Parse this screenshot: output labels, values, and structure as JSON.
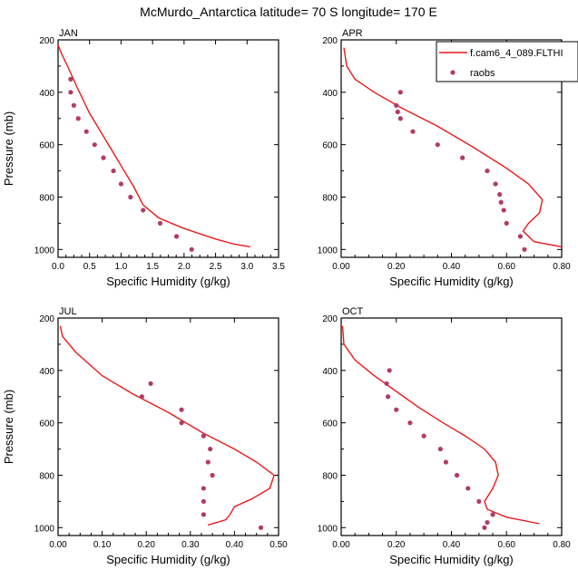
{
  "title": "McMurdo_Antarctica  latitude= 70 S longitude= 170 E",
  "colors": {
    "model": "#e8191c",
    "raobs": "#b23b66",
    "axis": "#000000"
  },
  "legend": {
    "model_label": "f.cam6_4_089.FLTHI",
    "obs_label": "raobs",
    "placement": "top-right of APR panel"
  },
  "chart_data": [
    {
      "type": "line",
      "panel": "JAN",
      "xlabel": "Specific Humidity (g/kg)",
      "ylabel": "Pressure (mb)",
      "xlim": [
        0,
        3.5
      ],
      "ylim": [
        200,
        1030
      ],
      "y_inverted": true,
      "xticks": [
        "0.0",
        "0.5",
        "1.0",
        "1.5",
        "2.0",
        "2.5",
        "3.0",
        "3.5"
      ],
      "yticks": [
        "200",
        "400",
        "600",
        "800",
        "1000"
      ],
      "series": [
        {
          "kind": "line",
          "x": [
            0.0,
            0.05,
            0.15,
            0.3,
            0.5,
            0.75,
            1.0,
            1.2,
            1.35,
            1.6,
            2.0,
            2.5,
            2.8,
            3.05
          ],
          "y": [
            220,
            250,
            300,
            380,
            480,
            580,
            680,
            760,
            830,
            880,
            920,
            960,
            980,
            990
          ]
        },
        {
          "kind": "scatter",
          "x": [
            0.2,
            0.2,
            0.25,
            0.32,
            0.45,
            0.58,
            0.72,
            0.88,
            1.0,
            1.15,
            1.35,
            1.62,
            1.88,
            2.12
          ],
          "y": [
            350,
            400,
            450,
            500,
            550,
            600,
            650,
            700,
            750,
            800,
            850,
            900,
            950,
            1000
          ]
        }
      ]
    },
    {
      "type": "line",
      "panel": "APR",
      "xlabel": "Specific Humidity (g/kg)",
      "ylabel": "",
      "xlim": [
        0,
        0.8
      ],
      "ylim": [
        200,
        1030
      ],
      "y_inverted": true,
      "xticks": [
        "0.00",
        "0.20",
        "0.40",
        "0.60",
        "0.80"
      ],
      "yticks": [
        "200",
        "400",
        "600",
        "800",
        "1000"
      ],
      "series": [
        {
          "kind": "line",
          "x": [
            0.01,
            0.02,
            0.05,
            0.12,
            0.22,
            0.35,
            0.48,
            0.6,
            0.68,
            0.73,
            0.72,
            0.68,
            0.66,
            0.7,
            0.8
          ],
          "y": [
            230,
            300,
            350,
            400,
            460,
            530,
            610,
            690,
            750,
            810,
            860,
            900,
            930,
            970,
            990
          ]
        },
        {
          "kind": "scatter",
          "x": [
            0.215,
            0.2,
            0.205,
            0.215,
            0.26,
            0.35,
            0.44,
            0.53,
            0.56,
            0.575,
            0.58,
            0.59,
            0.6,
            0.65,
            0.665
          ],
          "y": [
            400,
            450,
            475,
            500,
            550,
            600,
            650,
            700,
            750,
            790,
            820,
            850,
            900,
            950,
            1000
          ]
        }
      ]
    },
    {
      "type": "line",
      "panel": "JUL",
      "xlabel": "Specific Humidity (g/kg)",
      "ylabel": "Pressure (mb)",
      "xlim": [
        0,
        0.5
      ],
      "ylim": [
        200,
        1030
      ],
      "y_inverted": true,
      "xticks": [
        "0.00",
        "0.10",
        "0.20",
        "0.30",
        "0.40",
        "0.50"
      ],
      "yticks": [
        "200",
        "400",
        "600",
        "800",
        "1000"
      ],
      "series": [
        {
          "kind": "line",
          "x": [
            0.005,
            0.01,
            0.04,
            0.1,
            0.17,
            0.25,
            0.33,
            0.4,
            0.45,
            0.49,
            0.48,
            0.44,
            0.4,
            0.39,
            0.38,
            0.34
          ],
          "y": [
            230,
            270,
            330,
            420,
            490,
            560,
            640,
            700,
            750,
            800,
            850,
            890,
            920,
            950,
            970,
            990
          ]
        },
        {
          "kind": "scatter",
          "x": [
            0.21,
            0.19,
            0.28,
            0.28,
            0.33,
            0.345,
            0.34,
            0.35,
            0.33,
            0.33,
            0.33,
            0.46
          ],
          "y": [
            450,
            500,
            550,
            600,
            650,
            700,
            750,
            800,
            850,
            900,
            950,
            1000
          ]
        }
      ]
    },
    {
      "type": "line",
      "panel": "OCT",
      "xlabel": "Specific Humidity (g/kg)",
      "ylabel": "",
      "xlim": [
        0,
        0.8
      ],
      "ylim": [
        200,
        1030
      ],
      "y_inverted": true,
      "xticks": [
        "0.00",
        "0.20",
        "0.40",
        "0.60",
        "0.80"
      ],
      "yticks": [
        "200",
        "400",
        "600",
        "800",
        "1000"
      ],
      "series": [
        {
          "kind": "line",
          "x": [
            0.005,
            0.01,
            0.05,
            0.12,
            0.2,
            0.28,
            0.37,
            0.45,
            0.52,
            0.56,
            0.57,
            0.55,
            0.52,
            0.53,
            0.6,
            0.72
          ],
          "y": [
            230,
            300,
            360,
            420,
            480,
            540,
            600,
            650,
            700,
            750,
            800,
            850,
            900,
            930,
            960,
            985
          ]
        },
        {
          "kind": "scatter",
          "x": [
            0.175,
            0.165,
            0.17,
            0.2,
            0.25,
            0.3,
            0.36,
            0.38,
            0.42,
            0.46,
            0.5,
            0.55,
            0.53,
            0.52
          ],
          "y": [
            400,
            450,
            500,
            550,
            600,
            650,
            700,
            750,
            800,
            850,
            900,
            950,
            980,
            1000
          ]
        }
      ]
    }
  ]
}
